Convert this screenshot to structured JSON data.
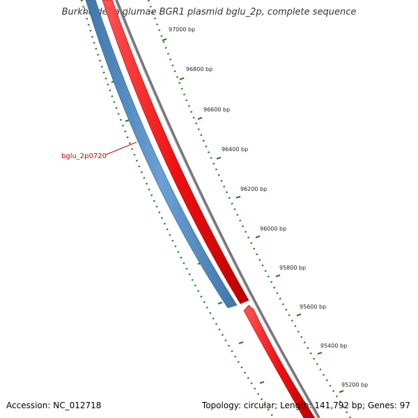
{
  "title": "Burkholderia glumae BGR1 plasmid bglu_2p, complete sequence",
  "footer": {
    "accession": "Accession: NC_012718",
    "summary": "Topology: circular; Length: 141,792 bp; Genes: 97"
  },
  "scale_labels": [
    "97000 bp",
    "96800 bp",
    "96600 bp",
    "96400 bp",
    "96200 bp",
    "96000 bp",
    "95800 bp",
    "95600 bp",
    "95400 bp",
    "95200 bp"
  ],
  "gene_labels": [
    {
      "text": "bglu_2p0720",
      "color": "#cc0000"
    }
  ],
  "colors": {
    "forward_gene": "#ee1111",
    "reverse_gene": "#4a86c0",
    "backbone": "#888888",
    "tick_track": "#1a7a1a",
    "scale_label_text": "#222222"
  }
}
